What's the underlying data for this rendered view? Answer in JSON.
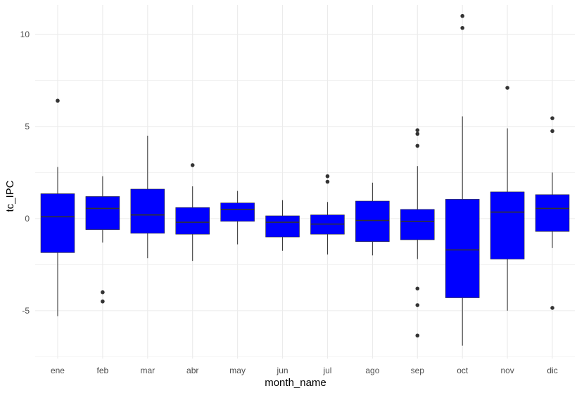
{
  "chart_data": {
    "type": "boxplot",
    "title": "",
    "xlabel": "month_name",
    "ylabel": "tc_IPC",
    "ylim": [
      -7.6,
      11.6
    ],
    "y_ticks": [
      -5,
      0,
      5,
      10
    ],
    "y_tick_labels": [
      "-5",
      "0",
      "5",
      "10"
    ],
    "grid": true,
    "legend": "none",
    "box_color": "#0000ff",
    "median_color": "#333333",
    "grid_color": "#ebebeb",
    "categories": [
      "ene",
      "feb",
      "mar",
      "abr",
      "may",
      "jun",
      "jul",
      "ago",
      "sep",
      "oct",
      "nov",
      "dic"
    ],
    "boxes": [
      {
        "category": "ene",
        "whisker_low": -5.3,
        "q1": -1.85,
        "median": 0.1,
        "q3": 1.35,
        "whisker_high": 2.8,
        "outliers": [
          6.4
        ]
      },
      {
        "category": "feb",
        "whisker_low": -1.3,
        "q1": -0.6,
        "median": 0.55,
        "q3": 1.2,
        "whisker_high": 2.3,
        "outliers": [
          -4.0,
          -4.5
        ]
      },
      {
        "category": "mar",
        "whisker_low": -2.15,
        "q1": -0.8,
        "median": 0.2,
        "q3": 1.6,
        "whisker_high": 4.5,
        "outliers": []
      },
      {
        "category": "abr",
        "whisker_low": -2.3,
        "q1": -0.85,
        "median": -0.2,
        "q3": 0.6,
        "whisker_high": 1.75,
        "outliers": [
          2.9
        ]
      },
      {
        "category": "may",
        "whisker_low": -1.4,
        "q1": -0.15,
        "median": 0.5,
        "q3": 0.85,
        "whisker_high": 1.5,
        "outliers": []
      },
      {
        "category": "jun",
        "whisker_low": -1.75,
        "q1": -1.0,
        "median": -0.2,
        "q3": 0.15,
        "whisker_high": 1.0,
        "outliers": []
      },
      {
        "category": "jul",
        "whisker_low": -1.95,
        "q1": -0.85,
        "median": -0.3,
        "q3": 0.2,
        "whisker_high": 0.9,
        "outliers": [
          2.0,
          2.3
        ]
      },
      {
        "category": "ago",
        "whisker_low": -2.0,
        "q1": -1.25,
        "median": -0.1,
        "q3": 0.95,
        "whisker_high": 1.95,
        "outliers": []
      },
      {
        "category": "sep",
        "whisker_low": -2.2,
        "q1": -1.15,
        "median": -0.15,
        "q3": 0.5,
        "whisker_high": 2.85,
        "outliers": [
          4.8,
          4.6,
          3.95,
          -3.8,
          -4.7,
          -6.35
        ]
      },
      {
        "category": "oct",
        "whisker_low": -6.9,
        "q1": -4.3,
        "median": -1.7,
        "q3": 1.05,
        "whisker_high": 5.55,
        "outliers": [
          11.0,
          10.35
        ]
      },
      {
        "category": "nov",
        "whisker_low": -5.0,
        "q1": -2.2,
        "median": 0.35,
        "q3": 1.45,
        "whisker_high": 4.9,
        "outliers": [
          7.1
        ]
      },
      {
        "category": "dic",
        "whisker_low": -1.6,
        "q1": -0.7,
        "median": 0.55,
        "q3": 1.3,
        "whisker_high": 2.5,
        "outliers": [
          5.45,
          4.75,
          -4.85
        ]
      }
    ]
  }
}
